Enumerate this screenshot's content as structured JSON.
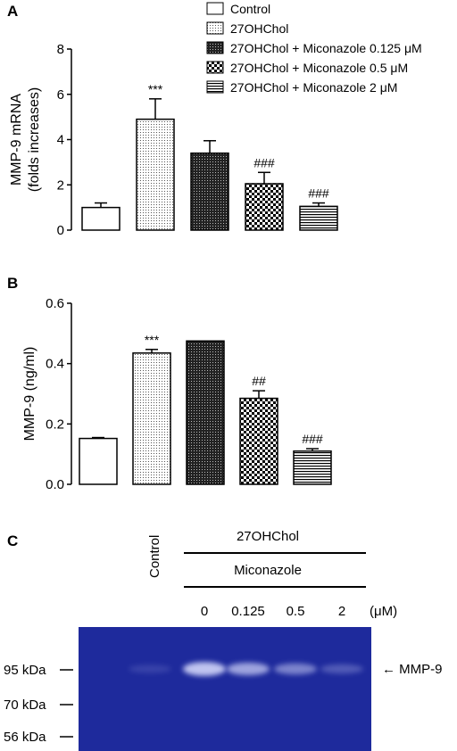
{
  "panels": {
    "a": "A",
    "b": "B",
    "c": "C"
  },
  "legend": [
    {
      "label": "Control",
      "pattern": "none"
    },
    {
      "label": "27OHChol",
      "pattern": "fine-dots"
    },
    {
      "label": "27OHChol + Miconazole 0.125 μM",
      "pattern": "dense-cross"
    },
    {
      "label": "27OHChol + Miconazole 0.5 μM",
      "pattern": "checker"
    },
    {
      "label": "27OHChol + Miconazole 2 μM",
      "pattern": "horizontal-lines"
    }
  ],
  "chart_data": [
    {
      "type": "bar",
      "panel": "A",
      "ylabel": [
        "MMP-9 mRNA",
        "(folds increases)"
      ],
      "ylim": [
        0,
        8
      ],
      "yticks": [
        "0",
        "2",
        "4",
        "6",
        "8"
      ],
      "categories": [
        "Control",
        "27OHChol",
        "27OHChol + Miconazole 0.125 μM",
        "27OHChol + Miconazole 0.5 μM",
        "27OHChol + Miconazole 2 μM"
      ],
      "values": [
        1.0,
        4.9,
        3.4,
        2.05,
        1.05
      ],
      "errors": [
        0.2,
        0.9,
        0.55,
        0.5,
        0.15
      ],
      "annotations": [
        "",
        "***",
        "",
        "###",
        "###"
      ]
    },
    {
      "type": "bar",
      "panel": "B",
      "ylabel": [
        "MMP-9 (ng/ml)"
      ],
      "ylim": [
        0,
        0.6
      ],
      "yticks": [
        "0.0",
        "0.2",
        "0.4",
        "0.6"
      ],
      "categories": [
        "Control",
        "27OHChol",
        "27OHChol + Miconazole 0.125 μM",
        "27OHChol + Miconazole 0.5 μM",
        "27OHChol + Miconazole 2 μM"
      ],
      "values": [
        0.152,
        0.435,
        0.475,
        0.285,
        0.11
      ],
      "errors": [
        0.003,
        0.012,
        0.0,
        0.025,
        0.008
      ],
      "annotations": [
        "",
        "***",
        "",
        "##",
        "###"
      ]
    }
  ],
  "gel": {
    "control_label": "Control",
    "treatment_label": "27OHChol",
    "drug_label": "Miconazole",
    "concentrations": [
      "0",
      "0.125",
      "0.5",
      "2"
    ],
    "unit": "(μM)",
    "markers": [
      "95 kDa",
      "70 kDa",
      "56 kDa"
    ],
    "band_label": "← MMP-9",
    "band_intensities": [
      0.15,
      0.95,
      0.75,
      0.55,
      0.3
    ],
    "background_color": "#1e2a9c",
    "band_color": "#c9cdf5"
  }
}
